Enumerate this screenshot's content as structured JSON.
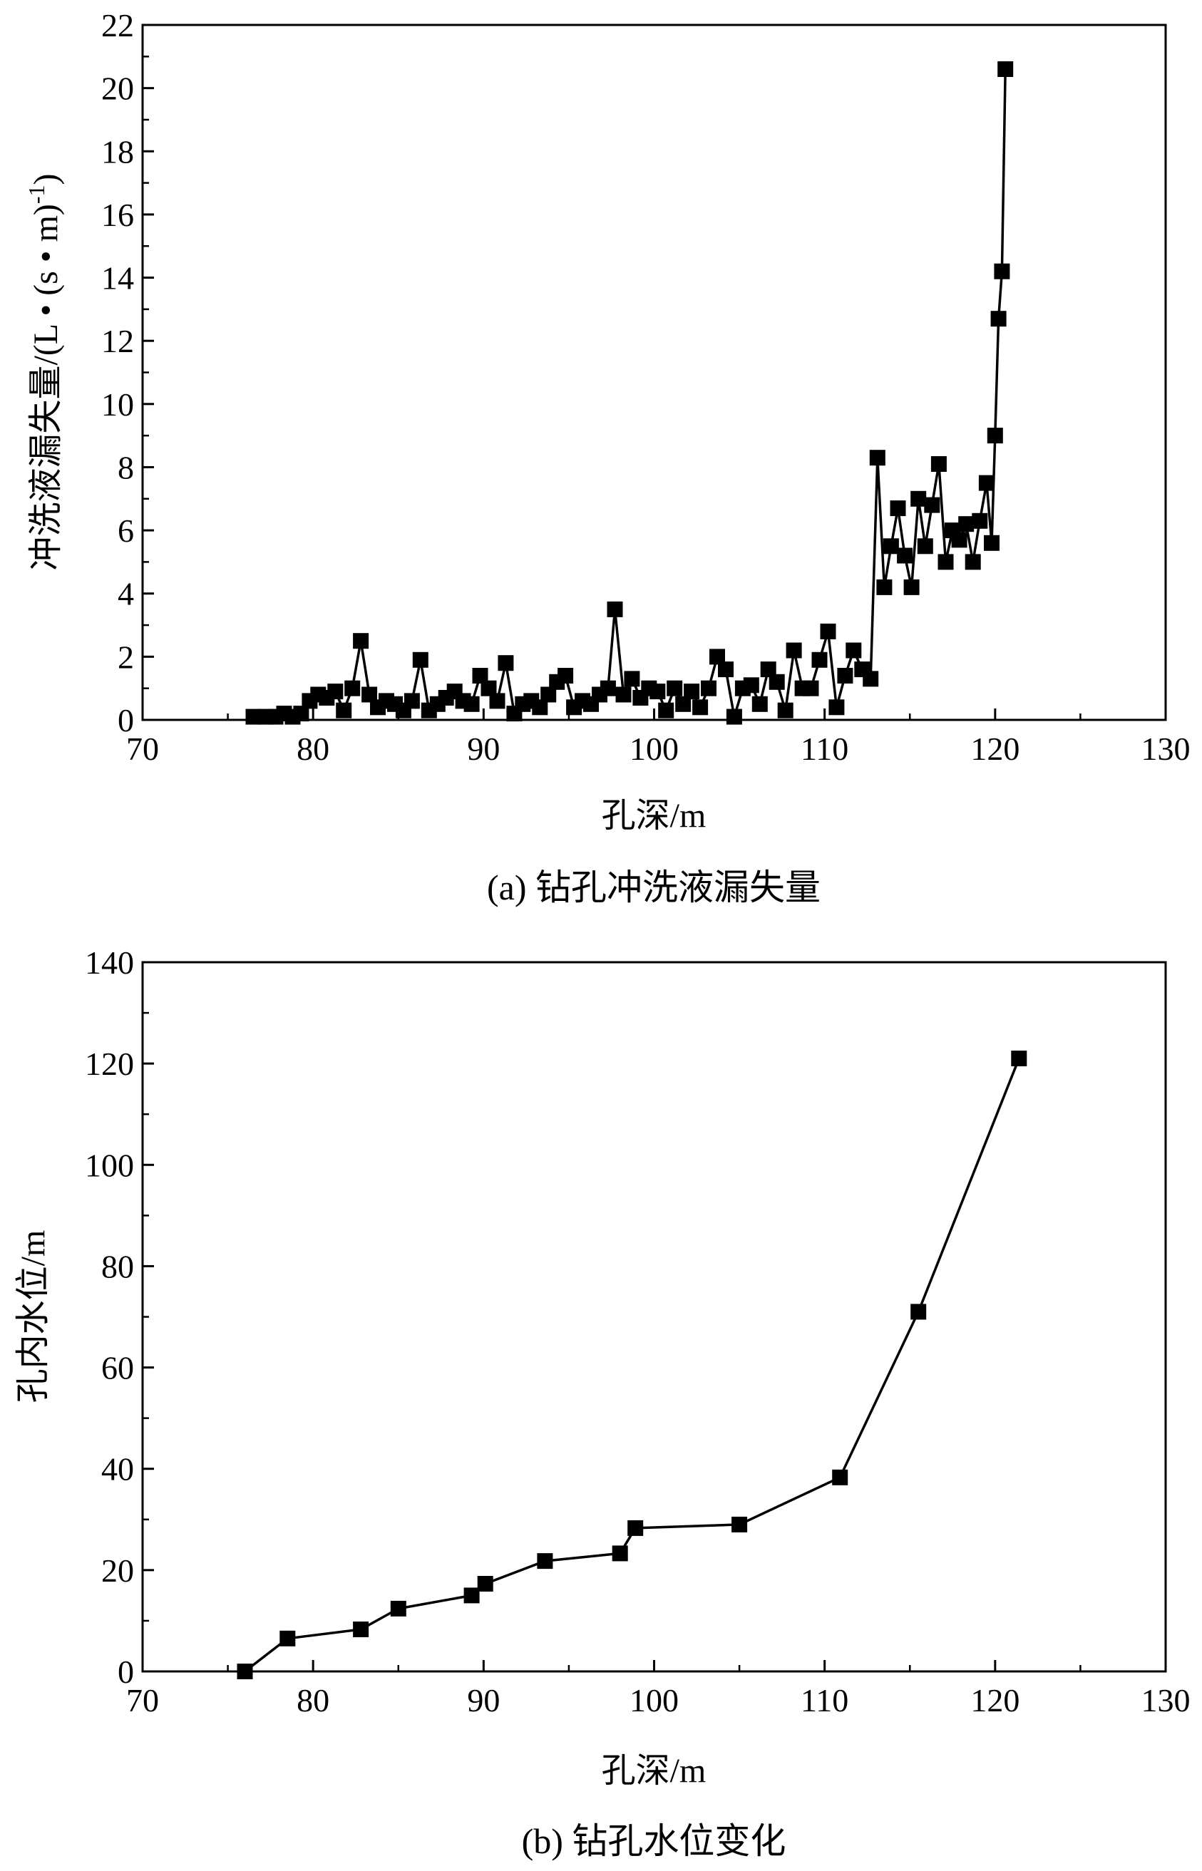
{
  "charts": [
    {
      "caption": "(a) 钻孔冲洗液漏失量",
      "xlabel": "孔深/m",
      "ylabel": "冲洗液漏失量/(L • (s • m)",
      "ylabel_sup": "-1",
      "ylabel_close": ")",
      "xticks": [
        "70",
        "80",
        "90",
        "100",
        "110",
        "120",
        "130"
      ],
      "yticks": [
        "0",
        "2",
        "4",
        "6",
        "8",
        "10",
        "12",
        "14",
        "16",
        "18",
        "20",
        "22"
      ]
    },
    {
      "caption": "(b) 钻孔水位变化",
      "xlabel": "孔深/m",
      "ylabel": "孔内水位/m",
      "xticks": [
        "70",
        "80",
        "90",
        "100",
        "110",
        "120",
        "130"
      ],
      "yticks": [
        "0",
        "20",
        "40",
        "60",
        "80",
        "100",
        "120",
        "140"
      ]
    }
  ],
  "chart_data": [
    {
      "type": "line",
      "marker": "square",
      "color": "#000000",
      "xlim": [
        70,
        130
      ],
      "ylim": [
        0,
        22
      ],
      "x": [
        76.5,
        77.2,
        77.8,
        78.3,
        78.8,
        79.3,
        79.8,
        80.3,
        80.8,
        81.3,
        81.8,
        82.3,
        82.8,
        83.3,
        83.8,
        84.3,
        84.8,
        85.3,
        85.8,
        86.3,
        86.8,
        87.3,
        87.8,
        88.3,
        88.8,
        89.3,
        89.8,
        90.3,
        90.8,
        91.3,
        91.8,
        92.3,
        92.8,
        93.3,
        93.8,
        94.3,
        94.8,
        95.3,
        95.8,
        96.3,
        96.8,
        97.3,
        97.7,
        98.2,
        98.7,
        99.2,
        99.7,
        100.2,
        100.7,
        101.2,
        101.7,
        102.2,
        102.7,
        103.2,
        103.7,
        104.2,
        104.7,
        105.2,
        105.7,
        106.2,
        106.7,
        107.2,
        107.7,
        108.2,
        108.7,
        109.2,
        109.7,
        110.2,
        110.7,
        111.2,
        111.7,
        112.2,
        112.7,
        113.1,
        113.5,
        113.9,
        114.3,
        114.7,
        115.1,
        115.5,
        115.9,
        116.3,
        116.7,
        117.1,
        117.5,
        117.9,
        118.3,
        118.7,
        119.1,
        119.5,
        119.8,
        120.0,
        120.2,
        120.4,
        120.6
      ],
      "y": [
        0.1,
        0.1,
        0.1,
        0.2,
        0.1,
        0.2,
        0.6,
        0.8,
        0.7,
        0.9,
        0.3,
        1.0,
        2.5,
        0.8,
        0.4,
        0.6,
        0.5,
        0.3,
        0.6,
        1.9,
        0.3,
        0.5,
        0.7,
        0.9,
        0.6,
        0.5,
        1.4,
        1.0,
        0.6,
        1.8,
        0.2,
        0.5,
        0.6,
        0.4,
        0.8,
        1.2,
        1.4,
        0.4,
        0.6,
        0.5,
        0.8,
        1.0,
        3.5,
        0.8,
        1.3,
        0.7,
        1.0,
        0.9,
        0.3,
        1.0,
        0.5,
        0.9,
        0.4,
        1.0,
        2.0,
        1.6,
        0.1,
        1.0,
        1.1,
        0.5,
        1.6,
        1.2,
        0.3,
        2.2,
        1.0,
        1.0,
        1.9,
        2.8,
        0.4,
        1.4,
        2.2,
        1.6,
        1.3,
        8.3,
        4.2,
        5.5,
        6.7,
        5.2,
        4.2,
        7.0,
        5.5,
        6.8,
        8.1,
        5.0,
        6.0,
        5.7,
        6.2,
        5.0,
        6.3,
        7.5,
        5.6,
        9.0,
        12.7,
        14.2,
        20.6
      ]
    },
    {
      "type": "line",
      "marker": "square",
      "color": "#000000",
      "xlim": [
        70,
        130
      ],
      "ylim": [
        0,
        140
      ],
      "x": [
        76.0,
        78.5,
        82.8,
        85.0,
        89.3,
        90.1,
        93.6,
        98.0,
        98.9,
        105.0,
        110.9,
        115.5,
        121.4
      ],
      "y": [
        0,
        6.5,
        8.3,
        12.4,
        15.0,
        17.3,
        21.8,
        23.3,
        28.3,
        29.0,
        38.3,
        71.0,
        121.0
      ]
    }
  ]
}
